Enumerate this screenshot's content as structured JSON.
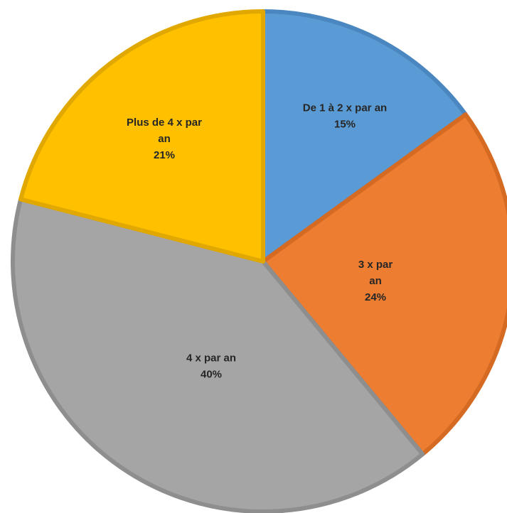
{
  "chart_data": {
    "type": "pie",
    "title": "",
    "start_angle_deg": 0,
    "direction": "clockwise",
    "legend": "none",
    "slices": [
      {
        "label_lines": [
          "De 1 à 2 x par an"
        ],
        "percent_label": "15%",
        "value": 15,
        "color": "#5B9BD5",
        "edge": "#4A86BF"
      },
      {
        "label_lines": [
          "3 x par",
          "an"
        ],
        "percent_label": "24%",
        "value": 24,
        "color": "#ED7D31",
        "edge": "#D56A22"
      },
      {
        "label_lines": [
          "4 x par an"
        ],
        "percent_label": "40%",
        "value": 40,
        "color": "#A5A5A5",
        "edge": "#8E8E8E"
      },
      {
        "label_lines": [
          "Plus de 4 x par",
          "an"
        ],
        "percent_label": "21%",
        "value": 21,
        "color": "#FFC000",
        "edge": "#E0A800"
      }
    ]
  }
}
